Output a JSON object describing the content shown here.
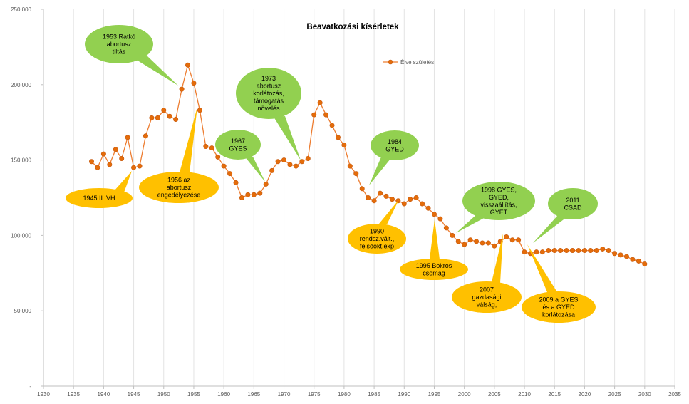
{
  "chart_data": {
    "type": "line",
    "title": "Beavatkozási kísérletek",
    "xlabel": "",
    "ylabel": "",
    "xlim": [
      1930,
      2035
    ],
    "ylim": [
      0,
      250000
    ],
    "x_ticks": [
      1930,
      1935,
      1940,
      1945,
      1950,
      1955,
      1960,
      1965,
      1970,
      1975,
      1980,
      1985,
      1990,
      1995,
      2000,
      2005,
      2010,
      2015,
      2020,
      2025,
      2030,
      2035
    ],
    "y_ticks": [
      {
        "value": 0,
        "label": "-"
      },
      {
        "value": 50000,
        "label": "50 000"
      },
      {
        "value": 100000,
        "label": "100 000"
      },
      {
        "value": 150000,
        "label": "150 000"
      },
      {
        "value": 200000,
        "label": "200 000"
      },
      {
        "value": 250000,
        "label": "250 000"
      }
    ],
    "grid": "vertical",
    "legend": {
      "placement": "top-right",
      "entry": "Élve születés"
    },
    "colors": {
      "line": "#ed7d31",
      "marker": "#e46c0a",
      "grid": "#e3e3e3",
      "axis": "#bfbfbf",
      "green_bubble": "#92d050",
      "orange_bubble": "#ffc000"
    },
    "series": [
      {
        "name": "Élve születés",
        "x": [
          1938,
          1939,
          1940,
          1941,
          1942,
          1943,
          1944,
          1945,
          1946,
          1947,
          1948,
          1949,
          1950,
          1951,
          1952,
          1953,
          1954,
          1955,
          1956,
          1957,
          1958,
          1959,
          1960,
          1961,
          1962,
          1963,
          1964,
          1965,
          1966,
          1967,
          1968,
          1969,
          1970,
          1971,
          1972,
          1973,
          1974,
          1975,
          1976,
          1977,
          1978,
          1979,
          1980,
          1981,
          1982,
          1983,
          1984,
          1985,
          1986,
          1987,
          1988,
          1989,
          1990,
          1991,
          1992,
          1993,
          1994,
          1995,
          1996,
          1997,
          1998,
          1999,
          2000,
          2001,
          2002,
          2003,
          2004,
          2005,
          2006,
          2007,
          2008,
          2009,
          2010,
          2011,
          2012,
          2013,
          2014,
          2015,
          2016,
          2017,
          2018,
          2019,
          2020,
          2021,
          2022,
          2023,
          2024,
          2025,
          2026,
          2027,
          2028,
          2029,
          2030
        ],
        "y": [
          149000,
          145000,
          154000,
          147000,
          157000,
          151000,
          165000,
          145000,
          146000,
          166000,
          178000,
          178000,
          183000,
          179000,
          177000,
          197000,
          213000,
          201000,
          183000,
          159000,
          158000,
          152000,
          146000,
          141000,
          135000,
          125000,
          127000,
          127000,
          128000,
          134000,
          143000,
          149000,
          150000,
          147000,
          146000,
          149000,
          151000,
          180000,
          188000,
          180000,
          173000,
          165000,
          160000,
          146000,
          141000,
          131000,
          125000,
          123000,
          128000,
          126000,
          124000,
          123000,
          121000,
          124000,
          125000,
          121000,
          118000,
          114000,
          111000,
          105000,
          100000,
          96000,
          94000,
          97000,
          96000,
          95000,
          95000,
          93000,
          96000,
          99000,
          97000,
          97000,
          89000,
          88000,
          89000,
          89000,
          90000,
          90000,
          90000,
          90000,
          90000,
          90000,
          90000,
          90000,
          90000,
          91000,
          90000,
          88000,
          87000,
          86000,
          84000,
          83000,
          81000
        ]
      }
    ],
    "annotations": [
      {
        "color": "green",
        "lines": [
          "1953 Ratkó",
          "abortusz",
          "tiltás"
        ]
      },
      {
        "color": "orange",
        "lines": [
          "1956 az",
          "abortusz",
          "engedélyezése"
        ]
      },
      {
        "color": "orange",
        "lines": [
          "1945 II. VH"
        ]
      },
      {
        "color": "green",
        "lines": [
          "1967",
          "GYES"
        ]
      },
      {
        "color": "green",
        "lines": [
          "1973",
          "abortusz",
          "korlátozás,",
          "támogatás",
          "növelés"
        ]
      },
      {
        "color": "green",
        "lines": [
          "1984",
          "GYED"
        ]
      },
      {
        "color": "orange",
        "lines": [
          "1990",
          "rendsz.vált.,",
          "felsőokt.exp"
        ]
      },
      {
        "color": "orange",
        "lines": [
          "1995 Bokros",
          "csomag"
        ]
      },
      {
        "color": "green",
        "lines": [
          "1998 GYES,",
          "GYED,",
          "visszaállítás,",
          "GYET"
        ]
      },
      {
        "color": "green",
        "lines": [
          "2011",
          "CSAD"
        ]
      },
      {
        "color": "orange",
        "lines": [
          "2007",
          "gazdasági",
          "válság,"
        ]
      },
      {
        "color": "orange",
        "lines": [
          "2009 a GYES",
          "és a GYED",
          "korlátozása"
        ]
      }
    ]
  }
}
